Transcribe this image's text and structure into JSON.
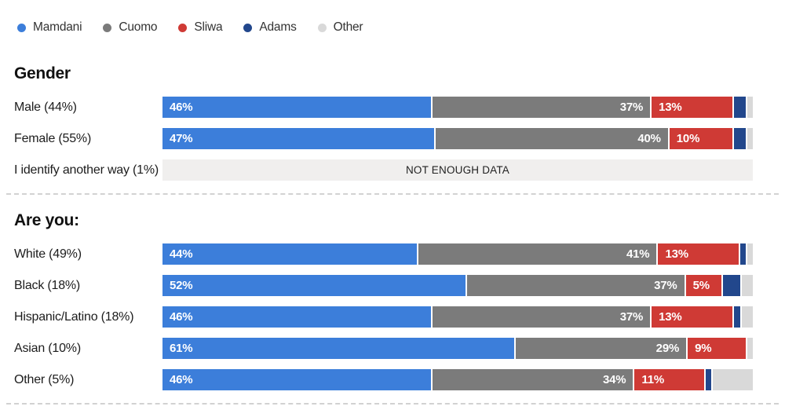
{
  "colors": {
    "mamdani": "#3c7eda",
    "cuomo": "#7b7b7b",
    "sliwa": "#cf3a35",
    "adams": "#22478c",
    "other": "#d9d9d9",
    "no_data_bg": "#f0efee"
  },
  "legend": {
    "items": [
      {
        "label": "Mamdani",
        "color_key": "mamdani"
      },
      {
        "label": "Cuomo",
        "color_key": "cuomo"
      },
      {
        "label": "Sliwa",
        "color_key": "sliwa"
      },
      {
        "label": "Adams",
        "color_key": "adams"
      },
      {
        "label": "Other",
        "color_key": "other"
      }
    ]
  },
  "chart_data": {
    "type": "bar",
    "stacked": true,
    "orientation": "horizontal",
    "unit": "%",
    "series_names": [
      "Mamdani",
      "Cuomo",
      "Sliwa",
      "Adams",
      "Other"
    ],
    "series_color_keys": [
      "mamdani",
      "cuomo",
      "sliwa",
      "adams",
      "other"
    ],
    "segment_label_alignment": [
      "start",
      "end",
      "start",
      "none",
      "none"
    ],
    "no_data_text": "NOT ENOUGH DATA",
    "sections": [
      {
        "title": "Gender",
        "rows": [
          {
            "label": "Male (44%)",
            "values": [
              46,
              37,
              13,
              2,
              1
            ],
            "seg_labels": [
              "46%",
              "37%",
              "13%",
              "",
              ""
            ]
          },
          {
            "label": "Female (55%)",
            "values": [
              47,
              40,
              10,
              2,
              1
            ],
            "seg_labels": [
              "47%",
              "40%",
              "10%",
              "",
              ""
            ]
          },
          {
            "label": "I identify another way (1%)",
            "no_data": true
          }
        ]
      },
      {
        "title": "Are you:",
        "rows": [
          {
            "label": "White (49%)",
            "values": [
              44,
              41,
              13,
              1,
              1
            ],
            "seg_labels": [
              "44%",
              "41%",
              "13%",
              "",
              ""
            ]
          },
          {
            "label": "Black (18%)",
            "values": [
              52,
              37,
              5,
              3,
              2
            ],
            "seg_labels": [
              "52%",
              "37%",
              "5%",
              "",
              ""
            ]
          },
          {
            "label": "Hispanic/Latino (18%)",
            "values": [
              46,
              37,
              13,
              1,
              2
            ],
            "seg_labels": [
              "46%",
              "37%",
              "13%",
              "",
              ""
            ]
          },
          {
            "label": "Asian (10%)",
            "values": [
              61,
              29,
              9,
              0,
              1
            ],
            "seg_labels": [
              "61%",
              "29%",
              "9%",
              "",
              ""
            ]
          },
          {
            "label": "Other (5%)",
            "values": [
              46,
              34,
              11,
              1,
              7
            ],
            "seg_labels": [
              "46%",
              "34%",
              "11%",
              "",
              ""
            ]
          }
        ]
      }
    ]
  }
}
